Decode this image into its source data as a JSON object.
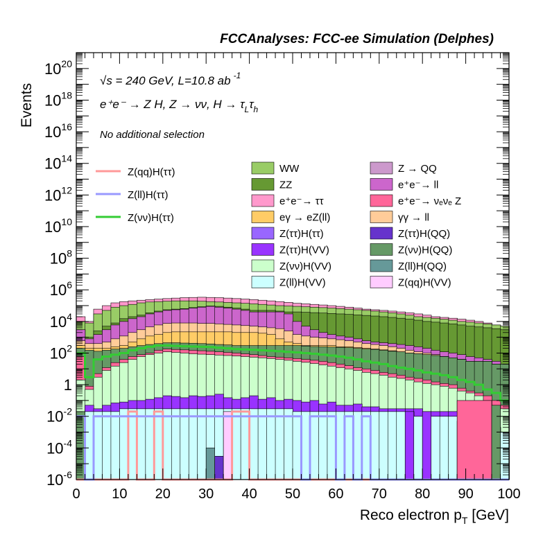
{
  "header": {
    "title": "FCCAnalyses: FCC-ee Simulation (Delphes)",
    "energy_line": "√s = 240 GeV, L=10.8 ab",
    "energy_exp": "-1",
    "process_line": "e⁺e⁻ → Z H, Z → νν, H → τ",
    "process_sub1": "L",
    "process_tau2": "τ",
    "process_sub2": "h",
    "selection": "No additional selection"
  },
  "axes": {
    "xlabel": "Reco electron p",
    "xlabel_sub": "T",
    "xlabel_unit": " [GeV]",
    "ylabel": "Events"
  },
  "chart_data": {
    "type": "area",
    "title": "FCCAnalyses: FCC-ee Simulation (Delphes)",
    "xlabel": "Reco electron pT [GeV]",
    "ylabel": "Events",
    "xlim": [
      0,
      100
    ],
    "ylim": [
      1e-06,
      1e+21
    ],
    "yscale": "log",
    "x_ticks": [
      "0",
      "10",
      "20",
      "30",
      "40",
      "50",
      "60",
      "70",
      "80",
      "90",
      "100"
    ],
    "y_ticks": [
      {
        "v": 1e-06,
        "base": "10",
        "exp": "-6"
      },
      {
        "v": 0.0001,
        "base": "10",
        "exp": "-4"
      },
      {
        "v": 0.01,
        "base": "10",
        "exp": "-2"
      },
      {
        "v": 1,
        "base": "1",
        "exp": ""
      },
      {
        "v": 100.0,
        "base": "10",
        "exp": "2"
      },
      {
        "v": 10000.0,
        "base": "10",
        "exp": "4"
      },
      {
        "v": 1000000.0,
        "base": "10",
        "exp": "6"
      },
      {
        "v": 100000000.0,
        "base": "10",
        "exp": "8"
      },
      {
        "v": 10000000000.0,
        "base": "10",
        "exp": "10"
      },
      {
        "v": 1000000000000.0,
        "base": "10",
        "exp": "12"
      },
      {
        "v": 100000000000000.0,
        "base": "10",
        "exp": "14"
      },
      {
        "v": 1e+16,
        "base": "10",
        "exp": "16"
      },
      {
        "v": 1e+18,
        "base": "10",
        "exp": "18"
      },
      {
        "v": 1e+20,
        "base": "10",
        "exp": "20"
      }
    ],
    "bin_edges": [
      0,
      2,
      4,
      6,
      8,
      10,
      12,
      14,
      16,
      18,
      20,
      22,
      24,
      26,
      28,
      30,
      32,
      34,
      36,
      38,
      40,
      42,
      44,
      46,
      48,
      50,
      52,
      54,
      56,
      58,
      60,
      62,
      64,
      66,
      68,
      70,
      72,
      74,
      76,
      78,
      80,
      82,
      84,
      86,
      88,
      90,
      92,
      94,
      96,
      98,
      100
    ],
    "stack_totals": [
      {
        "name": "Z(ll)H(VV)",
        "color": "#ccffff",
        "values": [
          0.02,
          0.02,
          0.02,
          0.02,
          0.02,
          0.03,
          0.03,
          0.03,
          0.03,
          0.03,
          0.03,
          0.03,
          0.03,
          0.03,
          0.03,
          0.03,
          0.03,
          0.03,
          0.03,
          0.03,
          0.03,
          0.03,
          0.03,
          0.03,
          0.03,
          0.02,
          0.02,
          0.02,
          0.02,
          0.02,
          0.02,
          0.02,
          0.02,
          0.02,
          0.02,
          0.02,
          0.02,
          0.02,
          0.02,
          0.01,
          0.01,
          0.01,
          0.01,
          0.01,
          0.005,
          0.005,
          0.005,
          0.003,
          0.002,
          0.001
        ]
      },
      {
        "name": "Z(ττ)H(VV)",
        "color": "#9933ff",
        "values": [
          0.02,
          0.05,
          0.03,
          0.05,
          0.07,
          0.08,
          0.1,
          0.1,
          0.12,
          0.15,
          0.2,
          0.18,
          0.15,
          0.2,
          0.18,
          0.2,
          0.25,
          0.15,
          0.12,
          0.15,
          0.2,
          0.12,
          0.15,
          0.1,
          0.12,
          0.1,
          0.08,
          0.1,
          0.06,
          0.08,
          0.05,
          0.05,
          0.06,
          0.04,
          0.04,
          0.03,
          0.03,
          0.03,
          0.03,
          0.03,
          0.02,
          0.02,
          0.02,
          0.02,
          0.01,
          0.005,
          0.005,
          0.003,
          0.002,
          0.001
        ]
      },
      {
        "name": "Z(νν)H(VV)",
        "color": "#ccffcc",
        "values": [
          2,
          0.5,
          3,
          8,
          15,
          25,
          40,
          60,
          80,
          100,
          120,
          110,
          100,
          90,
          85,
          80,
          75,
          70,
          65,
          60,
          55,
          50,
          45,
          40,
          35,
          30,
          26,
          22,
          18,
          15,
          12,
          10,
          8,
          6,
          5,
          4,
          3,
          2.5,
          2,
          1.5,
          1.2,
          1,
          0.8,
          0.6,
          0.4,
          0.3,
          0.2,
          0.1,
          0.05,
          0.03
        ]
      },
      {
        "name": "e⁺e⁻ → νₑνₑ Z",
        "color": "#ff6699",
        "values": [
          60,
          0.8,
          5,
          12,
          25,
          40,
          60,
          80,
          100,
          150,
          180,
          170,
          160,
          150,
          140,
          130,
          120,
          110,
          100,
          90,
          80,
          70,
          60,
          55,
          50,
          45,
          40,
          35,
          30,
          25,
          20,
          16,
          12,
          10,
          8,
          6,
          5,
          4,
          3,
          2.5,
          2,
          1.5,
          1.2,
          1,
          0.6,
          0.4,
          0.3,
          0.2,
          0.1,
          0.05
        ]
      },
      {
        "name": "Z(νν)H(QQ)",
        "color": "#669966",
        "values": [
          200,
          150,
          130,
          150,
          180,
          200,
          250,
          300,
          350,
          400,
          450,
          450,
          430,
          420,
          400,
          380,
          350,
          330,
          300,
          300,
          300,
          300,
          300,
          300,
          300,
          300,
          280,
          260,
          250,
          240,
          230,
          220,
          200,
          180,
          170,
          150,
          130,
          120,
          100,
          90,
          80,
          70,
          60,
          50,
          40,
          30,
          30,
          30,
          20,
          20
        ]
      },
      {
        "name": "eγ → eZ(ll)",
        "color": "#ffcc66",
        "values": [
          300,
          200,
          200,
          200,
          250,
          300,
          500,
          800,
          1200,
          1500,
          2000,
          2200,
          2200,
          2200,
          2200,
          2200,
          2200,
          2200,
          2000,
          2000,
          2000,
          1800,
          1500,
          800,
          500,
          400,
          300,
          300,
          300,
          300,
          250,
          250,
          220,
          200,
          180,
          160,
          140,
          120,
          100,
          90,
          80,
          70,
          60,
          50,
          40,
          30,
          30,
          30,
          20,
          20
        ]
      },
      {
        "name": "γγ → ll",
        "color": "#ffcc99",
        "values": [
          600,
          400,
          400,
          500,
          800,
          1200,
          2000,
          3000,
          4500,
          6000,
          7500,
          8000,
          8000,
          8000,
          7500,
          7500,
          7000,
          6500,
          6000,
          5500,
          5000,
          4500,
          4000,
          3500,
          2500,
          1500,
          1200,
          1000,
          900,
          800,
          700,
          600,
          500,
          400,
          350,
          300,
          250,
          200,
          150,
          120,
          100,
          80,
          60,
          50,
          40,
          30,
          30,
          30,
          20,
          20
        ]
      },
      {
        "name": "e⁺e⁻ → ll",
        "color": "#cc66cc",
        "values": [
          3000,
          800,
          1500,
          3000,
          6000,
          10000,
          15000,
          20000,
          30000,
          40000,
          50000,
          55000,
          60000,
          70000,
          80000,
          90000,
          80000,
          70000,
          60000,
          50000,
          40000,
          40000,
          40000,
          40000,
          30000,
          10000,
          5000,
          3000,
          2000,
          1500,
          1200,
          1000,
          800,
          600,
          500,
          450,
          400,
          350,
          300,
          250,
          200,
          150,
          120,
          100,
          80,
          60,
          50,
          40,
          30,
          20
        ]
      },
      {
        "name": "ZZ",
        "color": "#669933",
        "values": [
          3000,
          1000,
          2500,
          5000,
          8000,
          15000,
          20000,
          25000,
          35000,
          45000,
          55000,
          60000,
          65000,
          75000,
          85000,
          95000,
          90000,
          80000,
          70000,
          60000,
          50000,
          50000,
          50000,
          45000,
          40000,
          40000,
          38000,
          36000,
          34000,
          32000,
          30000,
          28000,
          26000,
          24000,
          22000,
          20000,
          18000,
          16000,
          14000,
          12000,
          10000,
          9000,
          8000,
          7000,
          6000,
          5000,
          4500,
          4000,
          3500,
          3000
        ]
      },
      {
        "name": "WW",
        "color": "#99cc66",
        "values": [
          10000,
          8000,
          30000,
          50000,
          80000,
          100000,
          120000,
          150000,
          170000,
          180000,
          190000,
          200000,
          200000,
          200000,
          190000,
          180000,
          170000,
          160000,
          150000,
          140000,
          130000,
          120000,
          110000,
          100000,
          95000,
          90000,
          85000,
          80000,
          75000,
          70000,
          65000,
          60000,
          55000,
          50000,
          45000,
          40000,
          35000,
          30000,
          25000,
          20000,
          18000,
          16000,
          14000,
          12000,
          10000,
          9000,
          8000,
          7000,
          6000,
          5000
        ]
      },
      {
        "name": "e⁺e⁻ → ττ",
        "color": "#ff99cc",
        "values": [
          20000,
          10000,
          60000,
          100000,
          150000,
          180000,
          200000,
          220000,
          240000,
          260000,
          280000,
          300000,
          320000,
          330000,
          340000,
          330000,
          320000,
          300000,
          280000,
          260000,
          240000,
          220000,
          200000,
          180000,
          160000,
          140000,
          130000,
          120000,
          110000,
          100000,
          90000,
          80000,
          70000,
          60000,
          55000,
          50000,
          45000,
          40000,
          35000,
          30000,
          25000,
          20000,
          18000,
          16000,
          14000,
          12000,
          10000,
          8000,
          6000,
          5000
        ]
      }
    ],
    "spikes": [
      {
        "name": "Z(ll)H(QQ)",
        "color": "#669999",
        "x": [
          30,
          32
        ],
        "value": 0.0001
      },
      {
        "name": "Z(ττ)H(QQ)",
        "color": "#6633cc",
        "x": [
          32,
          34
        ],
        "value": 3e-05
      },
      {
        "name": "Z(qq)H(VV)",
        "color": "#ffccff",
        "x": [
          34,
          36
        ],
        "value": 0.02
      },
      {
        "name": "Z(ττ)H(VV)",
        "color": "#9933ff",
        "x": [
          76,
          78
        ],
        "value": 0.02
      },
      {
        "name": "Z(ττ)H(VV)",
        "color": "#9933ff",
        "x": [
          80,
          82
        ],
        "value": 0.02
      },
      {
        "name": "e⁺e⁻ → νₑνₑ Z",
        "color": "#ff6699",
        "x": [
          88,
          96
        ],
        "value": 0.1
      },
      {
        "name": "Z(νν)H(QQ)",
        "color": "#669966",
        "x": [
          96,
          98
        ],
        "value": 0.05
      },
      {
        "name": "Z(νν)H(QQ)",
        "color": "#669966",
        "x": [
          0,
          2
        ],
        "value": 0.02
      }
    ],
    "lines": [
      {
        "name": "Z(νν)H(ττ)",
        "color": "#33cc33",
        "values": [
          100,
          3,
          40,
          60,
          80,
          100,
          150,
          200,
          250,
          300,
          300,
          280,
          270,
          260,
          250,
          240,
          220,
          200,
          180,
          170,
          160,
          150,
          140,
          130,
          120,
          110,
          100,
          90,
          80,
          70,
          60,
          50,
          40,
          30,
          25,
          20,
          15,
          12,
          10,
          8,
          6,
          5,
          4,
          3,
          2,
          1.5,
          1,
          0.5,
          0.3,
          0.1
        ]
      },
      {
        "name": "Z(ll)H(ττ)",
        "color": "#9999ff",
        "values": [
          0.01,
          1e-06,
          0.01,
          0.01,
          0.01,
          0.01,
          0.01,
          0.01,
          0.01,
          0.01,
          0.01,
          0.01,
          0.01,
          0.01,
          0.01,
          0.01,
          0.01,
          0.01,
          0.01,
          0.01,
          0.01,
          0.01,
          0.01,
          0.01,
          0.01,
          0.01,
          1e-06,
          0.01,
          0.01,
          0.01,
          1e-06,
          0.01,
          1e-06,
          0.01,
          1e-06,
          1e-06,
          1e-06,
          1e-06,
          1e-06,
          1e-06,
          1e-06,
          1e-06,
          1e-06,
          1e-06,
          1e-06,
          1e-06,
          1e-06,
          1e-06,
          1e-06,
          1e-06
        ]
      },
      {
        "name": "Z(qq)H(ττ)",
        "color": "#ff9999",
        "values": [
          1e-06,
          1e-06,
          1e-06,
          1e-06,
          1e-06,
          1e-06,
          0.02,
          1e-06,
          1e-06,
          0.02,
          1e-06,
          1e-06,
          1e-06,
          1e-06,
          1e-06,
          1e-06,
          1e-06,
          1e-06,
          0.02,
          0.02,
          1e-06,
          1e-06,
          1e-06,
          1e-06,
          1e-06,
          1e-06,
          1e-06,
          1e-06,
          1e-06,
          1e-06,
          1e-06,
          1e-06,
          1e-06,
          1e-06,
          1e-06,
          1e-06,
          1e-06,
          1e-06,
          1e-06,
          1e-06,
          1e-06,
          1e-06,
          1e-06,
          1e-06,
          1e-06,
          1e-06,
          1e-06,
          1e-06,
          1e-06,
          1e-06
        ]
      }
    ],
    "legend_lines": [
      {
        "label": "Z(qq)H(ττ)",
        "color": "#ff9999"
      },
      {
        "label": "Z(ll)H(ττ)",
        "color": "#9999ff"
      },
      {
        "label": "Z(νν)H(ττ)",
        "color": "#33cc33"
      }
    ],
    "legend_col1": [
      {
        "label": "WW",
        "color": "#99cc66"
      },
      {
        "label": "ZZ",
        "color": "#669933"
      },
      {
        "label": "e⁺e⁻→ ττ",
        "color": "#ff99cc"
      },
      {
        "label": "eγ → eZ(ll)",
        "color": "#ffcc66"
      },
      {
        "label": "Z(ττ)H(ττ)",
        "color": "#9966ff"
      },
      {
        "label": "Z(ττ)H(VV)",
        "color": "#9933ff"
      },
      {
        "label": "Z(νν)H(VV)",
        "color": "#ccffcc"
      },
      {
        "label": "Z(ll)H(VV)",
        "color": "#ccffff"
      }
    ],
    "legend_col2": [
      {
        "label": "Z → QQ",
        "color": "#cc99cc"
      },
      {
        "label": "e⁺e⁻→ ll",
        "color": "#cc66cc"
      },
      {
        "label": "e⁺e⁻→ νₑνₑ Z",
        "color": "#ff6699"
      },
      {
        "label": "γγ → ll",
        "color": "#ffcc99"
      },
      {
        "label": "Z(ττ)H(QQ)",
        "color": "#6633cc"
      },
      {
        "label": "Z(νν)H(QQ)",
        "color": "#669966"
      },
      {
        "label": "Z(ll)H(QQ)",
        "color": "#669999"
      },
      {
        "label": "Z(qq)H(VV)",
        "color": "#ffccff"
      }
    ]
  }
}
